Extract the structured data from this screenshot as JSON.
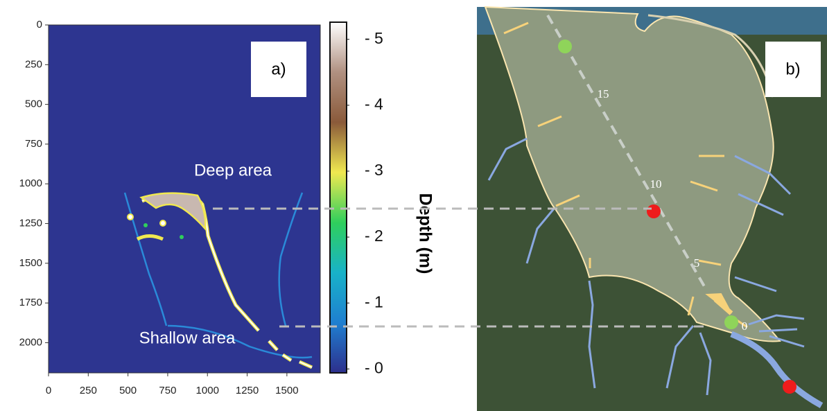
{
  "chart_data": [
    {
      "type": "heatmap",
      "panel_label": "a)",
      "annotations": [
        "Deep area",
        "Shallow area"
      ],
      "xlim": [
        0,
        1710
      ],
      "xticks": [
        0,
        250,
        500,
        750,
        1000,
        1250,
        1500
      ],
      "ylim": [
        0,
        2190
      ],
      "yticks": [
        0,
        250,
        500,
        750,
        1000,
        1250,
        1500,
        1750,
        2000
      ],
      "background_color": "#2d3590",
      "colorbar": {
        "label": "Depth (m)",
        "lim": [
          -0.06,
          5.26
        ],
        "ticks": [
          {
            "value": 5,
            "label": "- 5"
          },
          {
            "value": 4,
            "label": "- 4"
          },
          {
            "value": 3,
            "label": "- 3"
          },
          {
            "value": 2,
            "label": "- 2"
          },
          {
            "value": 1,
            "label": "- 1"
          },
          {
            "value": 0,
            "label": "- 0"
          }
        ],
        "colors": [
          "#2d2f8c",
          "#1f7fd0",
          "#18b2c8",
          "#2fcf5c",
          "#f0e850",
          "#8a5a3a",
          "#b09080",
          "#ffffff"
        ]
      }
    },
    {
      "type": "map",
      "panel_label": "b)",
      "markers": [
        "15",
        "10",
        "5",
        "0"
      ]
    }
  ]
}
